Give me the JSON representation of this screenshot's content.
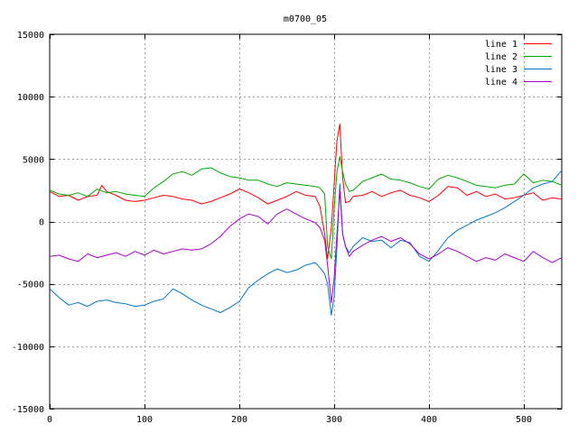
{
  "chart_data": {
    "type": "line",
    "title": "m0700_05",
    "xlabel": "",
    "ylabel": "",
    "xlim": [
      0,
      540
    ],
    "ylim": [
      -15000,
      15000
    ],
    "xticks": [
      0,
      100,
      200,
      300,
      400,
      500
    ],
    "yticks": [
      -15000,
      -10000,
      -5000,
      0,
      5000,
      10000,
      15000
    ],
    "grid": true,
    "legend_position": "top-right",
    "series": [
      {
        "name": "line 1",
        "color": "#ff0000",
        "x": [
          0,
          10,
          20,
          30,
          40,
          50,
          55,
          60,
          70,
          80,
          90,
          100,
          110,
          120,
          130,
          140,
          150,
          160,
          170,
          180,
          190,
          200,
          210,
          220,
          230,
          240,
          250,
          260,
          270,
          280,
          285,
          290,
          293,
          297,
          300,
          303,
          306,
          309,
          312,
          316,
          320,
          330,
          340,
          350,
          360,
          370,
          380,
          390,
          400,
          410,
          420,
          430,
          440,
          450,
          460,
          470,
          480,
          490,
          500,
          510,
          520,
          530,
          540
        ],
        "y": [
          2400,
          2000,
          2100,
          1700,
          2000,
          2100,
          2900,
          2400,
          2100,
          1700,
          1600,
          1700,
          1900,
          2100,
          2000,
          1800,
          1700,
          1400,
          1600,
          1900,
          2200,
          2600,
          2300,
          1900,
          1400,
          1700,
          2000,
          2400,
          2100,
          2000,
          1200,
          -1000,
          -3000,
          -500,
          3000,
          6500,
          7800,
          3500,
          1500,
          1600,
          2000,
          2100,
          2400,
          2000,
          2300,
          2500,
          2100,
          1900,
          1600,
          2100,
          2800,
          2700,
          2100,
          2400,
          2000,
          2200,
          1800,
          1900,
          2100,
          2300,
          1700,
          1900,
          1800
        ]
      },
      {
        "name": "line 2",
        "color": "#00aa00",
        "x": [
          0,
          10,
          20,
          30,
          40,
          50,
          60,
          70,
          80,
          90,
          100,
          110,
          120,
          130,
          140,
          150,
          160,
          170,
          180,
          190,
          200,
          210,
          220,
          230,
          240,
          250,
          260,
          270,
          280,
          285,
          290,
          293,
          297,
          300,
          303,
          306,
          309,
          312,
          316,
          320,
          330,
          340,
          350,
          360,
          370,
          380,
          390,
          400,
          410,
          420,
          430,
          440,
          450,
          460,
          470,
          480,
          490,
          500,
          510,
          520,
          530,
          540
        ],
        "y": [
          2500,
          2200,
          2100,
          2300,
          2000,
          2600,
          2300,
          2400,
          2200,
          2100,
          2000,
          2700,
          3200,
          3800,
          4000,
          3700,
          4200,
          4300,
          3900,
          3600,
          3500,
          3300,
          3300,
          3000,
          2800,
          3100,
          3000,
          2900,
          2800,
          2700,
          2200,
          -2000,
          -3000,
          1000,
          4000,
          5200,
          4000,
          3000,
          2400,
          2500,
          3200,
          3500,
          3800,
          3400,
          3300,
          3100,
          2800,
          2600,
          3400,
          3700,
          3500,
          3200,
          2900,
          2800,
          2700,
          2900,
          3000,
          3800,
          3100,
          3300,
          3200,
          2900
        ]
      },
      {
        "name": "line 3",
        "color": "#0077cc",
        "x": [
          0,
          10,
          20,
          30,
          40,
          50,
          60,
          70,
          80,
          90,
          100,
          110,
          120,
          130,
          140,
          150,
          160,
          170,
          180,
          190,
          200,
          210,
          220,
          230,
          240,
          250,
          260,
          270,
          280,
          285,
          290,
          293,
          297,
          300,
          303,
          306,
          309,
          312,
          316,
          320,
          330,
          340,
          350,
          360,
          370,
          380,
          390,
          400,
          410,
          420,
          430,
          440,
          450,
          460,
          470,
          480,
          490,
          500,
          510,
          520,
          530,
          540
        ],
        "y": [
          -5400,
          -6100,
          -6700,
          -6500,
          -6800,
          -6400,
          -6300,
          -6500,
          -6600,
          -6800,
          -6700,
          -6400,
          -6200,
          -5400,
          -5800,
          -6300,
          -6700,
          -7000,
          -7300,
          -6900,
          -6400,
          -5300,
          -4700,
          -4200,
          -3800,
          -4100,
          -3900,
          -3500,
          -3300,
          -3700,
          -4200,
          -5000,
          -7500,
          -6000,
          -2000,
          3000,
          -1000,
          -2000,
          -2500,
          -2000,
          -1300,
          -1600,
          -1500,
          -2100,
          -1500,
          -1700,
          -2800,
          -3200,
          -2300,
          -1300,
          -700,
          -300,
          100,
          400,
          700,
          1100,
          1600,
          2100,
          2700,
          3000,
          3200,
          4100
        ]
      },
      {
        "name": "line 4",
        "color": "#aa00cc",
        "x": [
          0,
          10,
          20,
          30,
          40,
          50,
          60,
          70,
          80,
          90,
          100,
          110,
          120,
          130,
          140,
          150,
          160,
          170,
          180,
          190,
          200,
          210,
          220,
          230,
          240,
          250,
          260,
          270,
          280,
          285,
          290,
          293,
          297,
          300,
          303,
          306,
          309,
          312,
          316,
          320,
          330,
          340,
          350,
          360,
          370,
          380,
          390,
          400,
          410,
          420,
          430,
          440,
          450,
          460,
          470,
          480,
          490,
          500,
          510,
          520,
          530,
          540
        ],
        "y": [
          -2800,
          -2700,
          -3000,
          -3200,
          -2600,
          -2900,
          -2700,
          -2500,
          -2800,
          -2400,
          -2700,
          -2300,
          -2600,
          -2400,
          -2200,
          -2300,
          -2200,
          -1800,
          -1200,
          -400,
          200,
          600,
          400,
          -200,
          600,
          1000,
          600,
          200,
          -100,
          -500,
          -1500,
          -3500,
          -6500,
          -4500,
          -1000,
          2500,
          -1000,
          -2000,
          -2800,
          -2400,
          -1900,
          -1500,
          -1200,
          -1600,
          -1300,
          -1800,
          -2600,
          -3000,
          -2600,
          -2100,
          -2400,
          -2800,
          -3200,
          -2900,
          -3100,
          -2600,
          -2900,
          -3200,
          -2400,
          -2900,
          -3300,
          -2900
        ]
      }
    ]
  }
}
